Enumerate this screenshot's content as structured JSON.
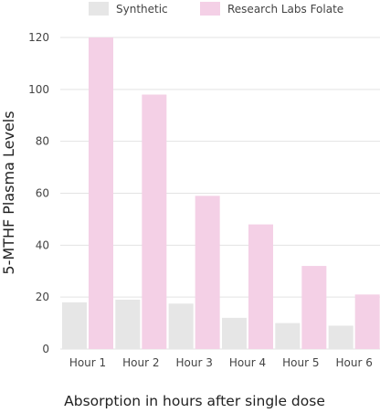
{
  "chart_data": {
    "type": "bar",
    "categories": [
      "Hour 1",
      "Hour 2",
      "Hour 3",
      "Hour 4",
      "Hour 5",
      "Hour 6"
    ],
    "series": [
      {
        "name": "Synthetic",
        "values": [
          18,
          19,
          17.5,
          12,
          10,
          9
        ],
        "color": "#e6e6e6"
      },
      {
        "name": "Research Labs Folate",
        "values": [
          120,
          98,
          59,
          48,
          32,
          21
        ],
        "color": "#f4d0e6"
      }
    ],
    "title": "",
    "xlabel": "Absorption in hours after single dose",
    "ylabel": "5-MTHF Plasma Levels",
    "ylim": [
      0,
      120
    ],
    "yticks": [
      0,
      20,
      40,
      60,
      80,
      100,
      120
    ],
    "grid": true,
    "legend": "top"
  }
}
